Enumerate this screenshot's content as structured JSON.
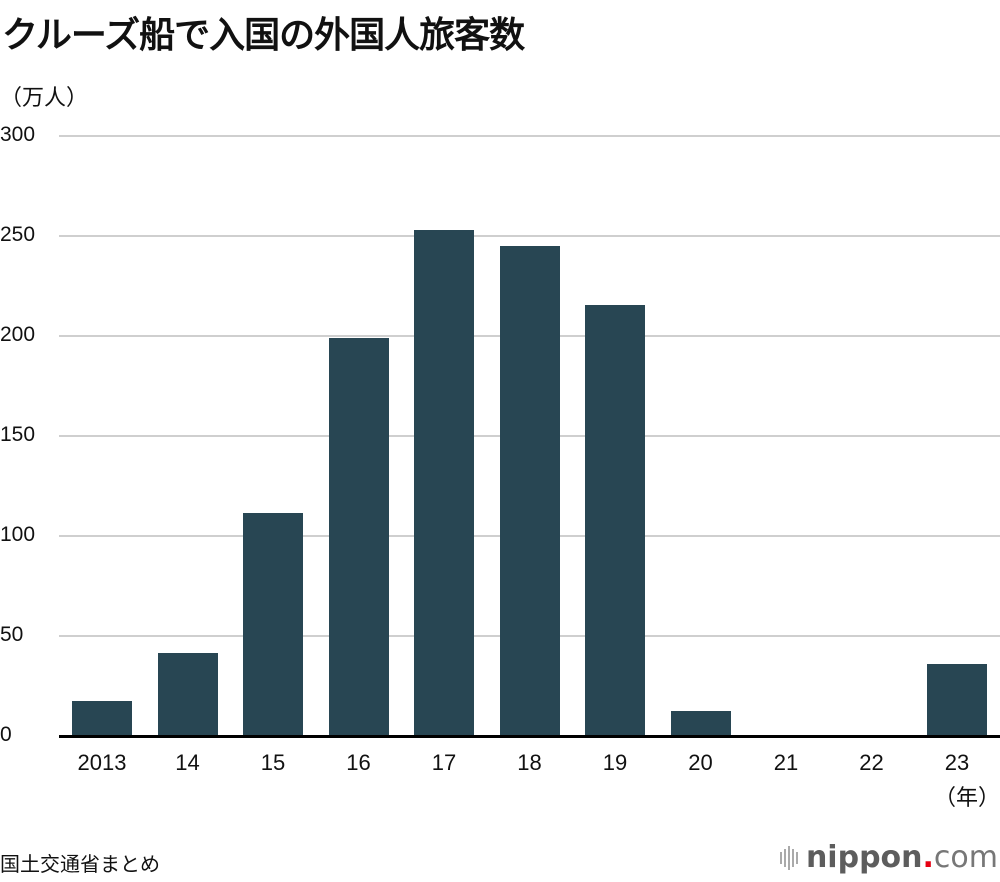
{
  "title": "クルーズ船で入国の外国人旅客数",
  "y_unit": "（万人）",
  "x_unit": "（年）",
  "source": "国土交通省まとめ",
  "logo": {
    "name": "nippon",
    "dot": ".",
    "tld": "com"
  },
  "colors": {
    "bar": "#284653",
    "grid": "#cfcfcf",
    "axis": "#000000",
    "logo_dot": "#e60012"
  },
  "chart_data": {
    "type": "bar",
    "title": "クルーズ船で入国の外国人旅客数",
    "xlabel": "（年）",
    "ylabel": "（万人）",
    "categories": [
      "2013",
      "14",
      "15",
      "16",
      "17",
      "18",
      "19",
      "20",
      "21",
      "22",
      "23"
    ],
    "values": [
      17.4,
      41.6,
      111.6,
      199.2,
      252.9,
      245.1,
      215.3,
      12.6,
      0,
      0,
      35.8
    ],
    "ylim": [
      0,
      300
    ],
    "yticks": [
      0,
      50,
      100,
      150,
      200,
      250,
      300
    ],
    "grid": true,
    "legend": null,
    "source": "国土交通省まとめ"
  }
}
